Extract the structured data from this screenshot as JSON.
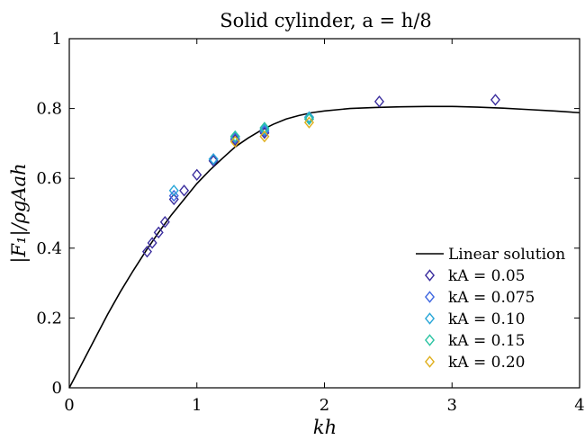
{
  "chart_data": {
    "type": "scatter",
    "title": "Solid cylinder, a = h/8",
    "xlabel": "kh",
    "ylabel": "|F₁|/ρgAah",
    "xlim": [
      0,
      4
    ],
    "ylim": [
      0,
      1
    ],
    "x_ticks": [
      "0",
      "1",
      "2",
      "3",
      "4"
    ],
    "y_ticks": [
      "0",
      "0.2",
      "0.4",
      "0.6",
      "0.8",
      "1"
    ],
    "x_tick_values": [
      0,
      1,
      2,
      3,
      4
    ],
    "y_tick_values": [
      0,
      0.2,
      0.4,
      0.6,
      0.8,
      1
    ],
    "grid": false,
    "legend_position": "lower-right",
    "line": {
      "name": "Linear solution",
      "color": "#000000",
      "x": [
        0.0,
        0.1,
        0.2,
        0.3,
        0.4,
        0.5,
        0.6,
        0.7,
        0.8,
        0.9,
        1.0,
        1.1,
        1.2,
        1.3,
        1.4,
        1.5,
        1.6,
        1.7,
        1.8,
        1.9,
        2.0,
        2.2,
        2.4,
        2.6,
        2.8,
        3.0,
        3.2,
        3.4,
        3.6,
        3.8,
        4.0
      ],
      "y": [
        0.0,
        0.07,
        0.14,
        0.21,
        0.275,
        0.335,
        0.392,
        0.445,
        0.495,
        0.54,
        0.585,
        0.623,
        0.657,
        0.69,
        0.715,
        0.737,
        0.755,
        0.77,
        0.78,
        0.788,
        0.793,
        0.8,
        0.803,
        0.805,
        0.806,
        0.806,
        0.804,
        0.801,
        0.797,
        0.793,
        0.788
      ]
    },
    "series": [
      {
        "name": "kA = 0.05",
        "color": "#3b2e9e",
        "x": [
          0.61,
          0.65,
          0.7,
          0.75,
          0.82,
          0.9,
          1.0,
          1.13,
          1.3,
          1.53,
          1.88,
          2.43,
          3.34
        ],
        "y": [
          0.39,
          0.415,
          0.445,
          0.475,
          0.54,
          0.565,
          0.61,
          0.65,
          0.71,
          0.73,
          0.77,
          0.82,
          0.825
        ]
      },
      {
        "name": "kA = 0.075",
        "color": "#4169e1",
        "x": [
          0.82,
          1.13,
          1.3,
          1.53,
          1.88
        ],
        "y": [
          0.55,
          0.655,
          0.715,
          0.735,
          0.775
        ]
      },
      {
        "name": "kA = 0.10",
        "color": "#2aa7d8",
        "x": [
          0.82,
          1.13,
          1.3,
          1.53,
          1.88
        ],
        "y": [
          0.565,
          0.655,
          0.72,
          0.74,
          0.775
        ]
      },
      {
        "name": "kA = 0.15",
        "color": "#2cc4a3",
        "x": [
          1.3,
          1.53,
          1.88
        ],
        "y": [
          0.72,
          0.745,
          0.77
        ]
      },
      {
        "name": "kA = 0.20",
        "color": "#e0b020",
        "x": [
          1.3,
          1.53,
          1.88
        ],
        "y": [
          0.705,
          0.72,
          0.76
        ]
      }
    ]
  }
}
